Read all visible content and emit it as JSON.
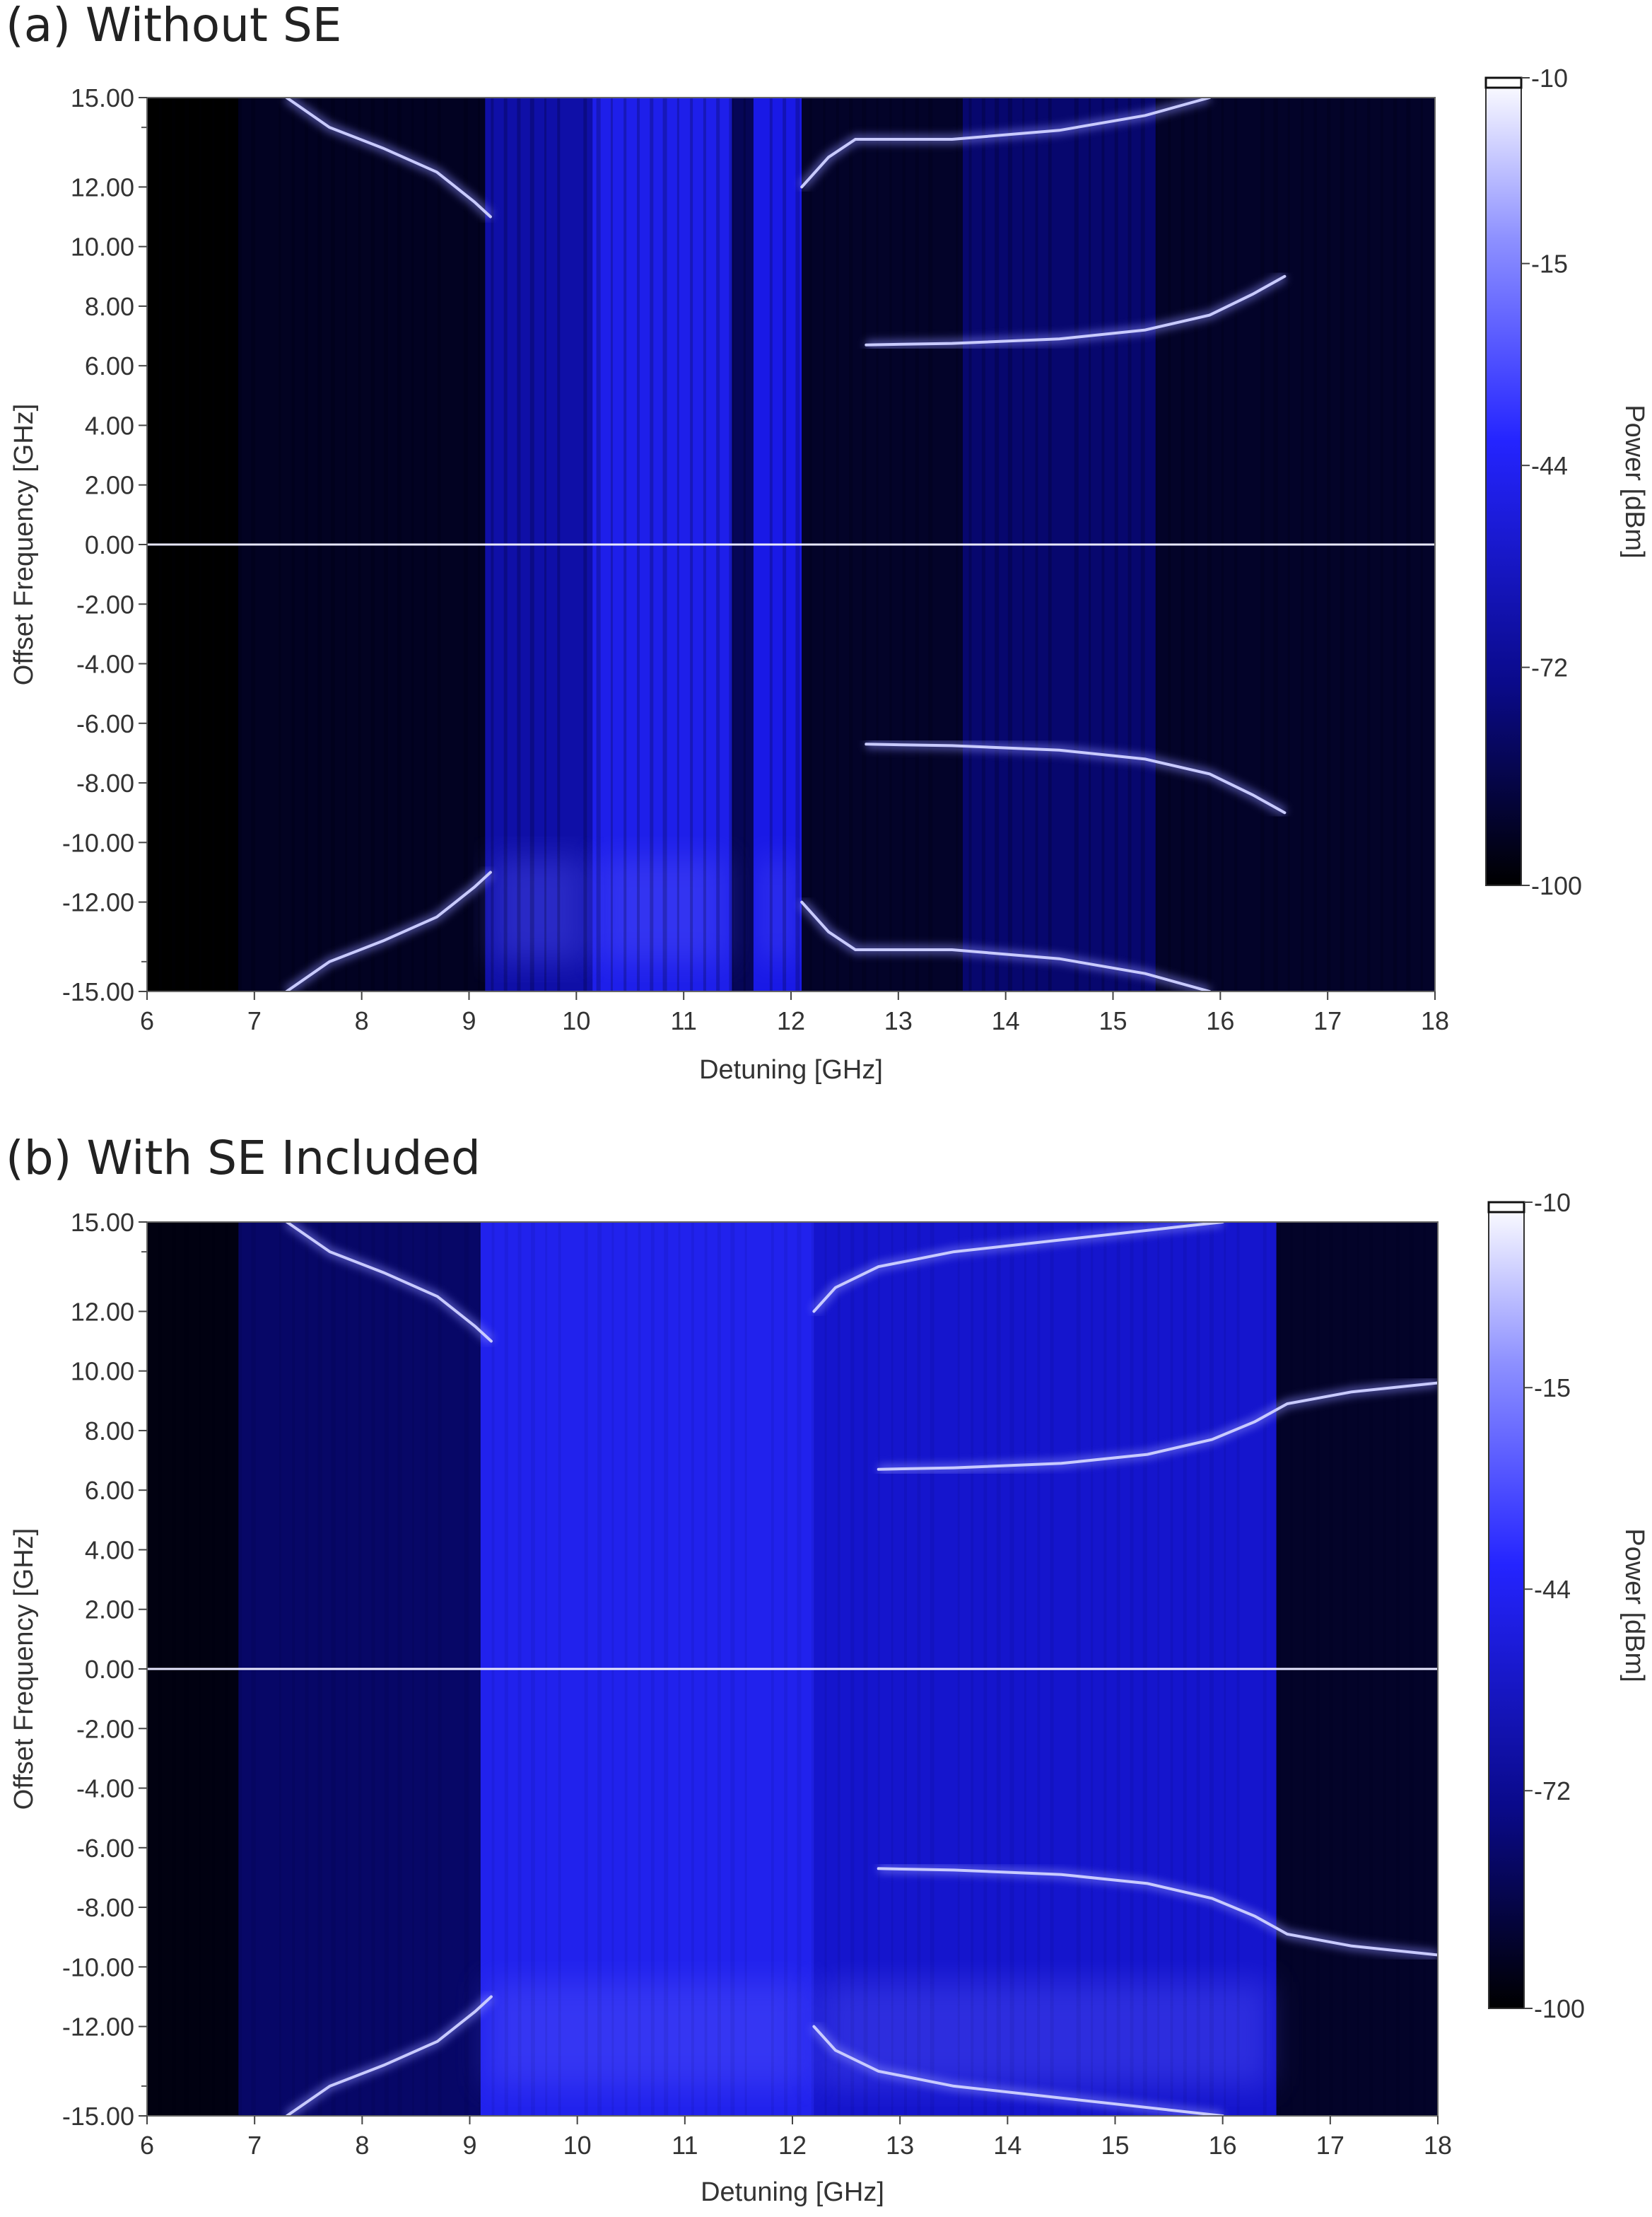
{
  "chart_data": [
    {
      "type": "heatmap",
      "panel_label": "(a) Without SE",
      "xlabel": "Detuning [GHz]",
      "ylabel": "Offset Frequency [GHz]",
      "xlim": [
        6,
        18
      ],
      "ylim": [
        -15,
        15
      ],
      "x_ticks": [
        "6",
        "7",
        "8",
        "9",
        "10",
        "11",
        "12",
        "13",
        "14",
        "15",
        "16",
        "17",
        "18"
      ],
      "y_ticks": [
        "15.00",
        "12.00",
        "10.00",
        "8.00",
        "6.00",
        "4.00",
        "2.00",
        "0.00",
        "-2.00",
        "-4.00",
        "-6.00",
        "-8.00",
        "-10.00",
        "-12.00",
        "-15.00"
      ],
      "colorbar": {
        "label": "Power [dBm]",
        "ticks": [
          "-10",
          "-15",
          "-44",
          "-72",
          "-100"
        ],
        "colors": [
          "#ffffff",
          "#6f72ff",
          "#1d1dff",
          "#0b0b8e",
          "#000000"
        ]
      },
      "bands": [
        {
          "x0": 6.0,
          "x1": 6.85,
          "level": 0.0
        },
        {
          "x0": 6.85,
          "x1": 9.15,
          "level": 0.1
        },
        {
          "x0": 9.15,
          "x1": 10.15,
          "level": 0.5
        },
        {
          "x0": 10.15,
          "x1": 11.45,
          "level": 0.75
        },
        {
          "x0": 11.45,
          "x1": 11.65,
          "level": 0.25
        },
        {
          "x0": 11.65,
          "x1": 12.1,
          "level": 0.7
        },
        {
          "x0": 12.1,
          "x1": 13.6,
          "level": 0.12
        },
        {
          "x0": 13.6,
          "x1": 15.4,
          "level": 0.32
        },
        {
          "x0": 15.4,
          "x1": 18.0,
          "level": 0.12
        }
      ],
      "series": [
        {
          "values": [
            [
              7.3,
              15
            ],
            [
              7.7,
              14.0
            ],
            [
              8.2,
              13.3
            ],
            [
              8.7,
              12.5
            ],
            [
              9.05,
              11.5
            ],
            [
              9.2,
              11.0
            ]
          ]
        },
        {
          "values": [
            [
              7.3,
              -15
            ],
            [
              7.7,
              -14.0
            ],
            [
              8.2,
              -13.3
            ],
            [
              8.7,
              -12.5
            ],
            [
              9.05,
              -11.5
            ],
            [
              9.2,
              -11.0
            ]
          ]
        },
        {
          "values": [
            [
              12.1,
              12.0
            ],
            [
              12.35,
              13.0
            ],
            [
              12.6,
              13.6
            ],
            [
              13.5,
              13.6
            ],
            [
              14.5,
              13.9
            ],
            [
              15.3,
              14.4
            ],
            [
              15.9,
              15.0
            ]
          ]
        },
        {
          "values": [
            [
              12.1,
              -12.0
            ],
            [
              12.35,
              -13.0
            ],
            [
              12.6,
              -13.6
            ],
            [
              13.5,
              -13.6
            ],
            [
              14.5,
              -13.9
            ],
            [
              15.3,
              -14.4
            ],
            [
              15.9,
              -15.0
            ]
          ]
        },
        {
          "values": [
            [
              12.7,
              6.7
            ],
            [
              13.5,
              6.75
            ],
            [
              14.5,
              6.9
            ],
            [
              15.3,
              7.2
            ],
            [
              15.9,
              7.7
            ],
            [
              16.3,
              8.4
            ],
            [
              16.6,
              9.0
            ]
          ]
        },
        {
          "values": [
            [
              12.7,
              -6.7
            ],
            [
              13.5,
              -6.75
            ],
            [
              14.5,
              -6.9
            ],
            [
              15.3,
              -7.2
            ],
            [
              15.9,
              -7.7
            ],
            [
              16.3,
              -8.4
            ],
            [
              16.6,
              -9.0
            ]
          ]
        },
        {
          "values": [
            [
              6.0,
              0.0
            ],
            [
              18.0,
              0.0
            ]
          ]
        }
      ]
    },
    {
      "type": "heatmap",
      "panel_label": "(b) With SE Included",
      "xlabel": "Detuning [GHz]",
      "ylabel": "Offset Frequency [GHz]",
      "xlim": [
        6,
        18
      ],
      "ylim": [
        -15,
        15
      ],
      "x_ticks": [
        "6",
        "7",
        "8",
        "9",
        "10",
        "11",
        "12",
        "13",
        "14",
        "15",
        "16",
        "17",
        "18"
      ],
      "y_ticks": [
        "15.00",
        "12.00",
        "10.00",
        "8.00",
        "6.00",
        "4.00",
        "2.00",
        "0.00",
        "-2.00",
        "-4.00",
        "-6.00",
        "-8.00",
        "-10.00",
        "-12.00",
        "-15.00"
      ],
      "colorbar": {
        "label": "Power [dBm]",
        "ticks": [
          "-10",
          "-15",
          "-44",
          "-72",
          "-100"
        ],
        "colors": [
          "#ffffff",
          "#6f72ff",
          "#1d1dff",
          "#0b0b8e",
          "#000000"
        ]
      },
      "bands": [
        {
          "x0": 6.0,
          "x1": 6.85,
          "level": 0.05
        },
        {
          "x0": 6.85,
          "x1": 9.1,
          "level": 0.3
        },
        {
          "x0": 9.1,
          "x1": 12.2,
          "level": 0.78
        },
        {
          "x0": 12.2,
          "x1": 16.5,
          "level": 0.62
        },
        {
          "x0": 16.5,
          "x1": 18.0,
          "level": 0.12
        }
      ],
      "series": [
        {
          "values": [
            [
              7.3,
              15
            ],
            [
              7.7,
              14.0
            ],
            [
              8.2,
              13.3
            ],
            [
              8.7,
              12.5
            ],
            [
              9.05,
              11.5
            ],
            [
              9.2,
              11.0
            ]
          ]
        },
        {
          "values": [
            [
              7.3,
              -15
            ],
            [
              7.7,
              -14.0
            ],
            [
              8.2,
              -13.3
            ],
            [
              8.7,
              -12.5
            ],
            [
              9.05,
              -11.5
            ],
            [
              9.2,
              -11.0
            ]
          ]
        },
        {
          "values": [
            [
              12.2,
              12.0
            ],
            [
              12.4,
              12.8
            ],
            [
              12.8,
              13.5
            ],
            [
              13.5,
              14.0
            ],
            [
              14.5,
              14.4
            ],
            [
              15.5,
              14.8
            ],
            [
              16.0,
              15.0
            ]
          ]
        },
        {
          "values": [
            [
              12.2,
              -12.0
            ],
            [
              12.4,
              -12.8
            ],
            [
              12.8,
              -13.5
            ],
            [
              13.5,
              -14.0
            ],
            [
              14.5,
              -14.4
            ],
            [
              15.5,
              -14.8
            ],
            [
              16.0,
              -15.0
            ]
          ]
        },
        {
          "values": [
            [
              12.8,
              6.7
            ],
            [
              13.5,
              6.75
            ],
            [
              14.5,
              6.9
            ],
            [
              15.3,
              7.2
            ],
            [
              15.9,
              7.7
            ],
            [
              16.3,
              8.3
            ],
            [
              16.6,
              8.9
            ],
            [
              17.2,
              9.3
            ],
            [
              18.0,
              9.6
            ]
          ]
        },
        {
          "values": [
            [
              12.8,
              -6.7
            ],
            [
              13.5,
              -6.75
            ],
            [
              14.5,
              -6.9
            ],
            [
              15.3,
              -7.2
            ],
            [
              15.9,
              -7.7
            ],
            [
              16.3,
              -8.3
            ],
            [
              16.6,
              -8.9
            ],
            [
              17.2,
              -9.3
            ],
            [
              18.0,
              -9.6
            ]
          ]
        },
        {
          "values": [
            [
              6.0,
              0.0
            ],
            [
              18.0,
              0.0
            ]
          ]
        }
      ]
    }
  ]
}
